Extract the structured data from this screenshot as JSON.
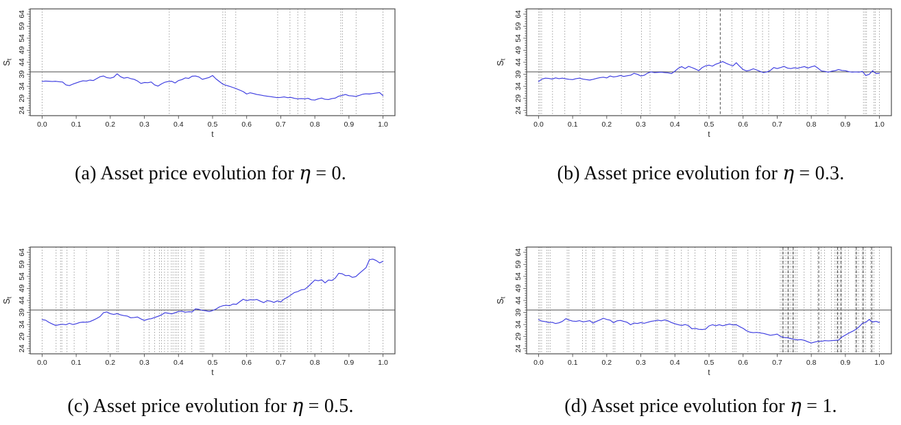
{
  "figure": {
    "background": "#ffffff",
    "description_visible_text_only": true
  },
  "captions": {
    "a": {
      "prefix": "(a) ",
      "body": "Asset price evolution for ",
      "eta": "η",
      "tail": " = 0."
    },
    "b": {
      "prefix": "(b) ",
      "body": "Asset price evolution for ",
      "eta": "η",
      "tail": " = 0.3."
    },
    "c": {
      "prefix": "(c) ",
      "body": "Asset price evolution for ",
      "eta": "η",
      "tail": " = 0.5."
    },
    "d": {
      "prefix": "(d) ",
      "body": "Asset price evolution for ",
      "eta": "η",
      "tail": " = 1."
    }
  },
  "chart_data": {
    "type": "line",
    "layout": "2x2-grid",
    "axes": {
      "xlabel": "t",
      "ylabel": "S",
      "ylabel_sub": "t",
      "xticks": [
        "0.0",
        "0.1",
        "0.2",
        "0.3",
        "0.4",
        "0.5",
        "0.6",
        "0.7",
        "0.8",
        "0.9",
        "1.0"
      ],
      "yticks": [
        24,
        29,
        34,
        39,
        44,
        49,
        54,
        59,
        64
      ],
      "xlim": [
        -0.035,
        1.035
      ],
      "ylim": [
        21.8,
        66.2
      ],
      "hline": 40,
      "grid": false
    },
    "style": {
      "path_color": "#3b3be0",
      "vline_color": "#8c8c8c",
      "vline_dark_color": "#4f4f4f",
      "hline_color": "#4a4a4a",
      "frame_color": "#4a4a4a",
      "tick_label_color": "#1c1c1c"
    },
    "x": [
      0,
      0.01,
      0.02,
      0.03,
      0.04,
      0.05,
      0.06,
      0.07,
      0.08,
      0.09,
      0.1,
      0.11,
      0.12,
      0.13,
      0.14,
      0.15,
      0.16,
      0.17,
      0.18,
      0.19,
      0.2,
      0.21,
      0.22,
      0.23,
      0.24,
      0.25,
      0.26,
      0.27,
      0.28,
      0.29,
      0.3,
      0.31,
      0.32,
      0.33,
      0.34,
      0.35,
      0.36,
      0.37,
      0.38,
      0.39,
      0.4,
      0.41,
      0.42,
      0.43,
      0.44,
      0.45,
      0.46,
      0.47,
      0.48,
      0.49,
      0.5,
      0.51,
      0.52,
      0.53,
      0.54,
      0.55,
      0.56,
      0.57,
      0.58,
      0.59,
      0.6,
      0.61,
      0.62,
      0.63,
      0.64,
      0.65,
      0.66,
      0.67,
      0.68,
      0.69,
      0.7,
      0.71,
      0.72,
      0.73,
      0.74,
      0.75,
      0.76,
      0.77,
      0.78,
      0.79,
      0.8,
      0.81,
      0.82,
      0.83,
      0.84,
      0.85,
      0.86,
      0.87,
      0.88,
      0.89,
      0.9,
      0.91,
      0.92,
      0.93,
      0.94,
      0.95,
      0.96,
      0.97,
      0.98,
      0.99,
      1.0
    ],
    "panels": [
      {
        "id": "a",
        "label": "(a)",
        "eta": "0",
        "title": "Asset price evolution for η = 0.",
        "vlines": [
          0,
          0.373,
          0.53,
          0.537,
          0.568,
          0.691,
          0.727,
          0.75,
          0.771,
          0.876,
          0.881,
          0.921,
          1.0
        ],
        "vlines_dark": [],
        "values": [
          36.0,
          36.2,
          36.1,
          36.0,
          36.1,
          35.9,
          35.8,
          34.6,
          34.3,
          34.9,
          35.4,
          35.9,
          36.3,
          36.2,
          36.6,
          36.4,
          37.2,
          38.0,
          38.3,
          37.6,
          37.4,
          37.8,
          39.2,
          38.0,
          37.4,
          37.7,
          37.2,
          36.9,
          36.2,
          35.2,
          35.6,
          35.5,
          35.8,
          34.6,
          34.1,
          35.0,
          35.7,
          36.0,
          36.1,
          35.4,
          36.4,
          36.8,
          37.5,
          37.3,
          38.2,
          38.3,
          37.9,
          36.9,
          37.3,
          37.7,
          38.5,
          37.1,
          36.0,
          34.9,
          34.4,
          34.0,
          33.5,
          33.0,
          32.4,
          31.8,
          30.8,
          31.3,
          31.0,
          30.6,
          30.4,
          30.1,
          29.9,
          29.7,
          29.5,
          29.3,
          29.4,
          29.6,
          29.3,
          29.4,
          29.0,
          28.8,
          28.9,
          28.8,
          29.0,
          28.4,
          28.3,
          28.8,
          29.1,
          28.6,
          28.5,
          28.9,
          29.1,
          29.9,
          30.2,
          30.6,
          30.1,
          30.0,
          29.8,
          30.2,
          30.7,
          30.9,
          30.8,
          31.0,
          31.2,
          31.4,
          30.1
        ]
      },
      {
        "id": "b",
        "label": "(b)",
        "eta": "0.3",
        "title": "Asset price evolution for η = 0.3.",
        "vlines": [
          0,
          0.004,
          0.009,
          0.041,
          0.077,
          0.122,
          0.243,
          0.302,
          0.327,
          0.413,
          0.472,
          0.493,
          0.567,
          0.598,
          0.638,
          0.657,
          0.675,
          0.719,
          0.754,
          0.764,
          0.788,
          0.814,
          0.849,
          0.953,
          0.958,
          0.962,
          0.984,
          0.988,
          1.0
        ],
        "vlines_dark": [
          0.533
        ],
        "values": [
          36.0,
          37.0,
          37.4,
          37.3,
          37.0,
          37.5,
          37.2,
          37.4,
          37.1,
          36.9,
          36.8,
          37.2,
          37.4,
          37.0,
          36.8,
          36.6,
          36.9,
          37.3,
          37.6,
          37.8,
          37.5,
          38.3,
          37.9,
          38.1,
          38.5,
          38.1,
          38.4,
          38.6,
          39.4,
          39.0,
          38.3,
          38.6,
          39.5,
          40.0,
          39.7,
          39.8,
          39.9,
          39.7,
          39.6,
          39.3,
          40.3,
          41.5,
          42.2,
          41.4,
          42.3,
          41.8,
          41.2,
          40.5,
          41.8,
          42.5,
          42.8,
          42.4,
          43.2,
          43.7,
          44.3,
          43.6,
          43.0,
          42.5,
          43.8,
          42.3,
          41.0,
          40.4,
          40.7,
          41.3,
          40.8,
          40.2,
          39.7,
          40.0,
          40.6,
          41.8,
          41.4,
          41.8,
          42.3,
          41.6,
          41.4,
          41.7,
          41.5,
          41.9,
          42.2,
          41.6,
          42.1,
          42.5,
          41.5,
          40.4,
          40.2,
          39.9,
          40.3,
          40.5,
          41.0,
          40.6,
          40.5,
          40.1,
          39.9,
          40.0,
          39.9,
          40.2,
          38.5,
          39.0,
          40.5,
          39.3,
          39.4
        ]
      },
      {
        "id": "c",
        "label": "(c)",
        "eta": "0.5",
        "title": "Asset price evolution for η = 0.5.",
        "vlines": [
          0,
          0.041,
          0.054,
          0.058,
          0.073,
          0.094,
          0.13,
          0.194,
          0.219,
          0.224,
          0.299,
          0.314,
          0.33,
          0.344,
          0.35,
          0.359,
          0.369,
          0.379,
          0.384,
          0.39,
          0.395,
          0.4,
          0.409,
          0.419,
          0.439,
          0.464,
          0.469,
          0.474,
          0.539,
          0.549,
          0.599,
          0.613,
          0.619,
          0.659,
          0.679,
          0.694,
          0.699,
          0.704,
          0.709,
          0.719,
          0.729,
          0.779,
          0.789,
          0.819,
          0.854,
          0.959,
          1.0
        ],
        "vlines_dark": [],
        "values": [
          36.0,
          35.8,
          34.9,
          34.2,
          33.6,
          33.9,
          34.1,
          33.9,
          34.5,
          34.0,
          34.3,
          34.8,
          35.0,
          34.9,
          35.2,
          35.8,
          36.5,
          37.3,
          38.9,
          39.2,
          38.5,
          38.2,
          38.5,
          38.0,
          37.7,
          37.5,
          36.8,
          36.9,
          37.1,
          36.3,
          35.7,
          36.2,
          36.4,
          36.9,
          37.4,
          38.0,
          38.9,
          38.7,
          38.4,
          38.9,
          39.4,
          39.5,
          39.1,
          39.3,
          39.2,
          40.5,
          40.3,
          39.9,
          39.7,
          39.4,
          39.8,
          40.4,
          41.3,
          41.8,
          42.0,
          41.8,
          42.5,
          42.4,
          43.5,
          44.5,
          43.9,
          44.3,
          44.2,
          44.4,
          43.7,
          43.1,
          43.9,
          43.7,
          43.2,
          43.8,
          43.4,
          44.6,
          45.3,
          46.3,
          47.3,
          47.7,
          48.4,
          48.6,
          49.7,
          51.1,
          52.5,
          52.2,
          52.6,
          51.3,
          52.5,
          52.3,
          53.3,
          55.3,
          55.1,
          54.3,
          54.4,
          53.6,
          53.9,
          55.2,
          56.4,
          57.6,
          60.9,
          61.2,
          60.6,
          59.6,
          60.3
        ]
      },
      {
        "id": "d",
        "label": "(d)",
        "eta": "1",
        "title": "Asset price evolution for η = 1.",
        "vlines": [
          0,
          0.004,
          0.009,
          0.024,
          0.029,
          0.034,
          0.084,
          0.089,
          0.129,
          0.139,
          0.159,
          0.164,
          0.189,
          0.219,
          0.224,
          0.249,
          0.279,
          0.304,
          0.344,
          0.349,
          0.374,
          0.379,
          0.399,
          0.419,
          0.439,
          0.459,
          0.489,
          0.519,
          0.549,
          0.569,
          0.574,
          0.579,
          0.614,
          0.639,
          0.649,
          0.709,
          0.714,
          0.719,
          0.724,
          0.729,
          0.734,
          0.739,
          0.744,
          0.749,
          0.754,
          0.759,
          0.779,
          0.799,
          0.819,
          0.829,
          0.839,
          0.859,
          0.869,
          0.874,
          0.879,
          0.884,
          0.889,
          0.899,
          0.909,
          0.929,
          0.934,
          0.939,
          0.949,
          0.954,
          0.959,
          0.974,
          0.979,
          0.984,
          1.0
        ],
        "vlines_dark": [
          0.717,
          0.732,
          0.747,
          0.822,
          0.877,
          0.887,
          0.932,
          0.952,
          0.977
        ],
        "values": [
          36.0,
          35.4,
          35.2,
          34.8,
          34.9,
          34.4,
          34.7,
          35.3,
          36.4,
          35.8,
          35.4,
          35.3,
          35.6,
          35.1,
          35.3,
          35.6,
          34.6,
          35.3,
          35.9,
          36.6,
          36.1,
          35.8,
          34.7,
          35.5,
          35.7,
          35.3,
          34.9,
          33.9,
          34.6,
          34.4,
          34.8,
          34.5,
          34.9,
          35.3,
          35.5,
          35.8,
          35.5,
          35.9,
          35.5,
          34.8,
          34.3,
          33.9,
          33.6,
          34.0,
          33.5,
          32.2,
          32.4,
          32.0,
          31.9,
          32.1,
          33.4,
          33.9,
          33.5,
          33.9,
          33.5,
          33.8,
          34.2,
          33.8,
          33.9,
          33.1,
          32.4,
          31.4,
          30.8,
          30.6,
          30.7,
          30.5,
          30.3,
          29.9,
          29.5,
          29.7,
          30.0,
          29.0,
          28.6,
          28.5,
          28.1,
          27.8,
          27.6,
          27.7,
          27.4,
          26.8,
          26.3,
          26.7,
          27.0,
          27.0,
          27.3,
          27.2,
          27.3,
          27.4,
          27.5,
          28.8,
          29.6,
          30.4,
          31.1,
          31.9,
          33.0,
          34.5,
          34.9,
          36.1,
          35.0,
          35.3,
          34.8
        ]
      }
    ]
  }
}
